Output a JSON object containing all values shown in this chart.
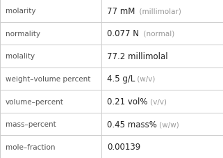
{
  "rows": [
    {
      "label": "molarity",
      "value_parts": [
        {
          "text": "77 mM",
          "bold": false,
          "color": "#222222",
          "fontsize": 8.5
        },
        {
          "text": "  (millimolar)",
          "bold": false,
          "color": "#999999",
          "fontsize": 7.5
        }
      ]
    },
    {
      "label": "normality",
      "value_parts": [
        {
          "text": "0.077 N",
          "bold": false,
          "color": "#222222",
          "fontsize": 8.5
        },
        {
          "text": "  (normal)",
          "bold": false,
          "color": "#999999",
          "fontsize": 7.5
        }
      ]
    },
    {
      "label": "molality",
      "value_parts": [
        {
          "text": "77.2 millimolal",
          "bold": false,
          "color": "#222222",
          "fontsize": 8.5
        }
      ]
    },
    {
      "label": "weight–volume percent",
      "value_parts": [
        {
          "text": "4.5 g/L",
          "bold": false,
          "color": "#222222",
          "fontsize": 8.5
        },
        {
          "text": " (w/v)",
          "bold": false,
          "color": "#999999",
          "fontsize": 7.5
        }
      ]
    },
    {
      "label": "volume–percent",
      "value_parts": [
        {
          "text": "0.21 vol%",
          "bold": false,
          "color": "#222222",
          "fontsize": 8.5
        },
        {
          "text": " (v/v)",
          "bold": false,
          "color": "#999999",
          "fontsize": 7.5
        }
      ]
    },
    {
      "label": "mass–percent",
      "value_parts": [
        {
          "text": "0.45 mass%",
          "bold": false,
          "color": "#222222",
          "fontsize": 8.5
        },
        {
          "text": " (w/w)",
          "bold": false,
          "color": "#999999",
          "fontsize": 7.5
        }
      ]
    },
    {
      "label": "mole–fraction",
      "value_parts": [
        {
          "text": "0.00139",
          "bold": false,
          "color": "#222222",
          "fontsize": 8.5
        }
      ]
    }
  ],
  "col_split": 0.455,
  "background_color": "#ffffff",
  "grid_color": "#cccccc",
  "label_color": "#555555",
  "label_fontsize": 7.5,
  "fig_width": 3.21,
  "fig_height": 2.28,
  "dpi": 100
}
